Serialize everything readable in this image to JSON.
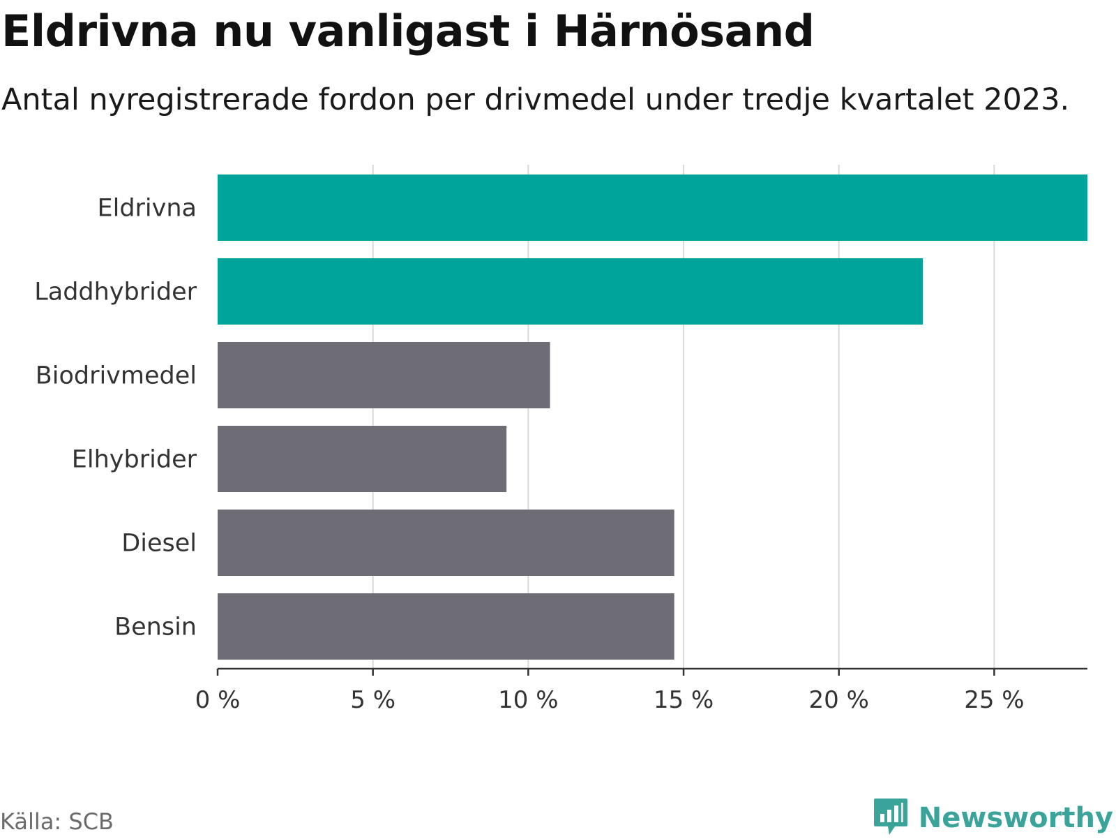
{
  "header": {
    "title": "Eldrivna nu vanligast i Härnösand",
    "subtitle": "Antal nyregistrerade fordon per drivmedel under tredje kvartalet 2023."
  },
  "footer": {
    "source": "Källa: SCB",
    "brand": "Newsworthy",
    "brand_icon": "bar-chart-bubble-icon"
  },
  "colors": {
    "highlight": "#00a49a",
    "default": "#6e6d75",
    "grid": "#d9d9d9",
    "axis": "#333333",
    "brand": "#3aa39a"
  },
  "chart_data": {
    "type": "bar",
    "orientation": "horizontal",
    "title": "Eldrivna nu vanligast i Härnösand",
    "subtitle": "Antal nyregistrerade fordon per drivmedel under tredje kvartalet 2023.",
    "categories": [
      "Eldrivna",
      "Laddhybrider",
      "Biodrivmedel",
      "Elhybrider",
      "Diesel",
      "Bensin"
    ],
    "values": [
      28.0,
      22.7,
      10.7,
      9.3,
      14.7,
      14.7
    ],
    "highlighted": [
      true,
      true,
      false,
      false,
      false,
      false
    ],
    "unit": "%",
    "xlim": [
      0,
      28
    ],
    "xticks": [
      0,
      5,
      10,
      15,
      20,
      25
    ],
    "xtick_labels": [
      "0 %",
      "5 %",
      "10 %",
      "15 %",
      "20 %",
      "25 %"
    ],
    "grid": true,
    "xlabel": "",
    "ylabel": ""
  }
}
